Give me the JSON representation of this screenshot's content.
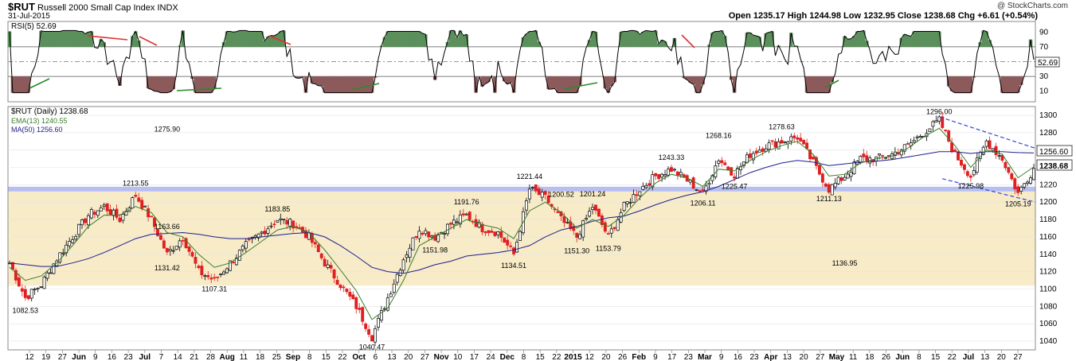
{
  "header": {
    "symbol": "$RUT",
    "name": "Russell 2000 Small Cap Index",
    "exchange": "INDX",
    "date": "31-Jul-2015",
    "watermark": "@ StockCharts.com",
    "quote": "Open 1235.17  High 1244.98  Low 1232.95  Close 1238.68  Chg +6.61 (+0.54%)",
    "change_color": "#008000"
  },
  "rsi": {
    "label": "RSI(5) 52.69",
    "current": 52.69,
    "current_label": "52.69",
    "levels": [
      90,
      70,
      50,
      30,
      10
    ],
    "level_labels": [
      "90",
      "70",
      "50",
      "30",
      "10"
    ],
    "overbought": 70,
    "oversold": 30,
    "fill_overbought": "#5b8f5b",
    "fill_oversold": "#8c5a5a",
    "line_color": "#000000"
  },
  "price": {
    "label": "$RUT (Daily) 1238.68",
    "ema_label": "EMA(13) 1240.55",
    "ma_label": "MA(50) 1256.60",
    "ema_color": "#3a7d2a",
    "ma_color": "#1e1e8c",
    "up_color": "#000000",
    "down_color": "#e02020",
    "support_band_color": "#f7ebc8",
    "support_line_color": "#aab4ee",
    "channel_color": "#3344dd",
    "ma_current_label": "1256.60",
    "close_label": "1238.68",
    "y_ticks": [
      1300,
      1280,
      1260,
      1240,
      1220,
      1200,
      1180,
      1160,
      1140,
      1120,
      1100,
      1080,
      1060,
      1040
    ],
    "y_tick_labels": [
      "1300",
      "1280",
      "1260",
      "1240",
      "1220",
      "1200",
      "1180",
      "1160",
      "1140",
      "1120",
      "1100",
      "1080",
      "1060",
      "1040"
    ]
  },
  "chart_data": {
    "type": "candlestick",
    "title": "$RUT Russell 2000 Small Cap Index INDX",
    "ylim": [
      1030,
      1310
    ],
    "support_zone": [
      1104,
      1212
    ],
    "support_line": 1215,
    "annotations": [
      {
        "label": "1082.53",
        "value": 1082.53,
        "date": "May 15"
      },
      {
        "label": "1136.95",
        "value": 1136.95,
        "date": "May 13"
      },
      {
        "label": "1213.55",
        "value": 1213.55,
        "date": "Jul 1"
      },
      {
        "label": "1163.66",
        "value": 1163.66,
        "date": "Jul 18"
      },
      {
        "label": "1131.42",
        "value": 1131.42,
        "date": "Jul 15"
      },
      {
        "label": "1107.31",
        "value": 1107.31,
        "date": "Aug 1"
      },
      {
        "label": "1183.85",
        "value": 1183.85,
        "date": "Sep 2"
      },
      {
        "label": "1040.47",
        "value": 1040.47,
        "date": "Oct 15"
      },
      {
        "label": "1191.76",
        "value": 1191.76,
        "date": "Nov 28"
      },
      {
        "label": "1151.98",
        "value": 1151.98,
        "date": "Nov 10"
      },
      {
        "label": "1134.51",
        "value": 1134.51,
        "date": "Dec 16"
      },
      {
        "label": "1221.44",
        "value": 1221.44,
        "date": "Dec 22"
      },
      {
        "label": "1200.52",
        "value": 1200.52,
        "date": "Jan 2"
      },
      {
        "label": "1151.30",
        "value": 1151.3,
        "date": "Jan 15"
      },
      {
        "label": "1201.24",
        "value": 1201.24,
        "date": "Jan 22"
      },
      {
        "label": "1153.79",
        "value": 1153.79,
        "date": "Jan 30"
      },
      {
        "label": "1243.33",
        "value": 1243.33,
        "date": "Feb 27"
      },
      {
        "label": "1206.11",
        "value": 1206.11,
        "date": "Mar 11"
      },
      {
        "label": "1268.16",
        "value": 1268.16,
        "date": "Mar 20"
      },
      {
        "label": "1225.47",
        "value": 1225.47,
        "date": "Mar 26"
      },
      {
        "label": "1278.63",
        "value": 1278.63,
        "date": "Apr 15"
      },
      {
        "label": "1211.13",
        "value": 1211.13,
        "date": "May 6"
      },
      {
        "label": "1296.00",
        "value": 1296.0,
        "date": "Jun 23"
      },
      {
        "label": "1225.98",
        "value": 1225.98,
        "date": "Jul 8"
      },
      {
        "label": "1275.90",
        "value": 1275.9,
        "date": "Jul 16"
      },
      {
        "label": "1205.19",
        "value": 1205.19,
        "date": "Jul 27"
      }
    ],
    "x_tick_labels": [
      "12",
      "19",
      "27",
      "Jun",
      "9",
      "16",
      "23",
      "Jul",
      "7",
      "14",
      "21",
      "28",
      "Aug",
      "11",
      "18",
      "25",
      "Sep",
      "8",
      "15",
      "22",
      "Oct",
      "6",
      "13",
      "20",
      "27",
      "Nov",
      "10",
      "17",
      "24",
      "Dec",
      "8",
      "15",
      "22",
      "2015",
      "12",
      "20",
      "26",
      "Feb",
      "9",
      "17",
      "23",
      "Mar",
      "9",
      "16",
      "23",
      "Apr",
      "13",
      "20",
      "27",
      "May",
      "11",
      "18",
      "26",
      "Jun",
      "8",
      "15",
      "22",
      "Jul",
      "13",
      "20",
      "27"
    ],
    "x_tick_bold": [
      "Jun",
      "Jul",
      "Aug",
      "Sep",
      "Oct",
      "Nov",
      "Dec",
      "2015",
      "Feb",
      "Mar",
      "Apr",
      "May"
    ],
    "price_path": [
      {
        "date": "May 8",
        "close": 1130
      },
      {
        "date": "May 15",
        "close": 1090
      },
      {
        "date": "May 22",
        "close": 1105
      },
      {
        "date": "May 29",
        "close": 1135
      },
      {
        "date": "Jun 5",
        "close": 1160
      },
      {
        "date": "Jun 12",
        "close": 1185
      },
      {
        "date": "Jun 19",
        "close": 1195
      },
      {
        "date": "Jun 26",
        "close": 1180
      },
      {
        "date": "Jul 2",
        "close": 1208
      },
      {
        "date": "Jul 9",
        "close": 1180
      },
      {
        "date": "Jul 16",
        "close": 1140
      },
      {
        "date": "Jul 23",
        "close": 1160
      },
      {
        "date": "Jul 30",
        "close": 1120
      },
      {
        "date": "Aug 6",
        "close": 1110
      },
      {
        "date": "Aug 13",
        "close": 1130
      },
      {
        "date": "Aug 20",
        "close": 1150
      },
      {
        "date": "Aug 27",
        "close": 1165
      },
      {
        "date": "Sep 3",
        "close": 1180
      },
      {
        "date": "Sep 10",
        "close": 1175
      },
      {
        "date": "Sep 17",
        "close": 1160
      },
      {
        "date": "Sep 24",
        "close": 1130
      },
      {
        "date": "Oct 1",
        "close": 1105
      },
      {
        "date": "Oct 8",
        "close": 1080
      },
      {
        "date": "Oct 15",
        "close": 1045
      },
      {
        "date": "Oct 22",
        "close": 1090
      },
      {
        "date": "Oct 29",
        "close": 1135
      },
      {
        "date": "Nov 5",
        "close": 1170
      },
      {
        "date": "Nov 12",
        "close": 1160
      },
      {
        "date": "Nov 19",
        "close": 1175
      },
      {
        "date": "Nov 26",
        "close": 1185
      },
      {
        "date": "Dec 3",
        "close": 1170
      },
      {
        "date": "Dec 10",
        "close": 1165
      },
      {
        "date": "Dec 17",
        "close": 1140
      },
      {
        "date": "Dec 24",
        "close": 1215
      },
      {
        "date": "Dec 31",
        "close": 1205
      },
      {
        "date": "Jan 8",
        "close": 1180
      },
      {
        "date": "Jan 15",
        "close": 1160
      },
      {
        "date": "Jan 22",
        "close": 1195
      },
      {
        "date": "Jan 29",
        "close": 1160
      },
      {
        "date": "Feb 5",
        "close": 1195
      },
      {
        "date": "Feb 12",
        "close": 1215
      },
      {
        "date": "Feb 19",
        "close": 1230
      },
      {
        "date": "Feb 26",
        "close": 1238
      },
      {
        "date": "Mar 5",
        "close": 1225
      },
      {
        "date": "Mar 12",
        "close": 1210
      },
      {
        "date": "Mar 19",
        "close": 1250
      },
      {
        "date": "Mar 26",
        "close": 1232
      },
      {
        "date": "Apr 2",
        "close": 1255
      },
      {
        "date": "Apr 9",
        "close": 1265
      },
      {
        "date": "Apr 16",
        "close": 1270
      },
      {
        "date": "Apr 23",
        "close": 1275
      },
      {
        "date": "Apr 30",
        "close": 1245
      },
      {
        "date": "May 7",
        "close": 1215
      },
      {
        "date": "May 14",
        "close": 1230
      },
      {
        "date": "May 21",
        "close": 1250
      },
      {
        "date": "May 28",
        "close": 1250
      },
      {
        "date": "Jun 4",
        "close": 1255
      },
      {
        "date": "Jun 11",
        "close": 1265
      },
      {
        "date": "Jun 18",
        "close": 1280
      },
      {
        "date": "Jun 23",
        "close": 1294
      },
      {
        "date": "Jun 30",
        "close": 1255
      },
      {
        "date": "Jul 8",
        "close": 1230
      },
      {
        "date": "Jul 16",
        "close": 1270
      },
      {
        "date": "Jul 23",
        "close": 1250
      },
      {
        "date": "Jul 27",
        "close": 1210
      },
      {
        "date": "Jul 31",
        "close": 1238.68
      }
    ],
    "ema13_path": [
      1125,
      1110,
      1115,
      1130,
      1150,
      1172,
      1185,
      1185,
      1195,
      1188,
      1165,
      1160,
      1140,
      1125,
      1130,
      1142,
      1155,
      1168,
      1172,
      1165,
      1145,
      1122,
      1098,
      1065,
      1078,
      1110,
      1150,
      1160,
      1170,
      1180,
      1174,
      1170,
      1158,
      1190,
      1200,
      1188,
      1170,
      1180,
      1172,
      1185,
      1205,
      1222,
      1232,
      1228,
      1218,
      1238,
      1236,
      1248,
      1258,
      1265,
      1270,
      1255,
      1230,
      1232,
      1245,
      1250,
      1253,
      1262,
      1275,
      1285,
      1265,
      1240,
      1260,
      1255,
      1228,
      1240.55
    ],
    "ma50_path": [
      1130,
      1128,
      1126,
      1126,
      1130,
      1135,
      1142,
      1150,
      1158,
      1163,
      1164,
      1165,
      1163,
      1160,
      1158,
      1158,
      1160,
      1162,
      1164,
      1165,
      1160,
      1150,
      1138,
      1125,
      1120,
      1118,
      1122,
      1128,
      1132,
      1138,
      1140,
      1142,
      1145,
      1150,
      1160,
      1168,
      1172,
      1178,
      1182,
      1184,
      1190,
      1197,
      1203,
      1208,
      1212,
      1218,
      1226,
      1234,
      1240,
      1245,
      1248,
      1246,
      1242,
      1244,
      1246,
      1247,
      1249,
      1252,
      1255,
      1258,
      1258,
      1256,
      1258,
      1258,
      1257,
      1256.6
    ]
  },
  "rsi_data": {
    "current": 52.69,
    "annotated_divergences": [
      {
        "type": "bearish",
        "period": "Jun-Jul 2014"
      },
      {
        "type": "bearish",
        "period": "Aug-Sep 2014"
      },
      {
        "type": "bearish",
        "period": "Feb-Mar 2015"
      },
      {
        "type": "bullish",
        "period": "May 2014"
      },
      {
        "type": "bullish",
        "period": "Jul-Aug 2014"
      },
      {
        "type": "bullish",
        "period": "Oct 2014"
      },
      {
        "type": "bullish",
        "period": "Dec 2014-Jan 2015"
      },
      {
        "type": "bullish",
        "period": "May 2015"
      }
    ]
  }
}
